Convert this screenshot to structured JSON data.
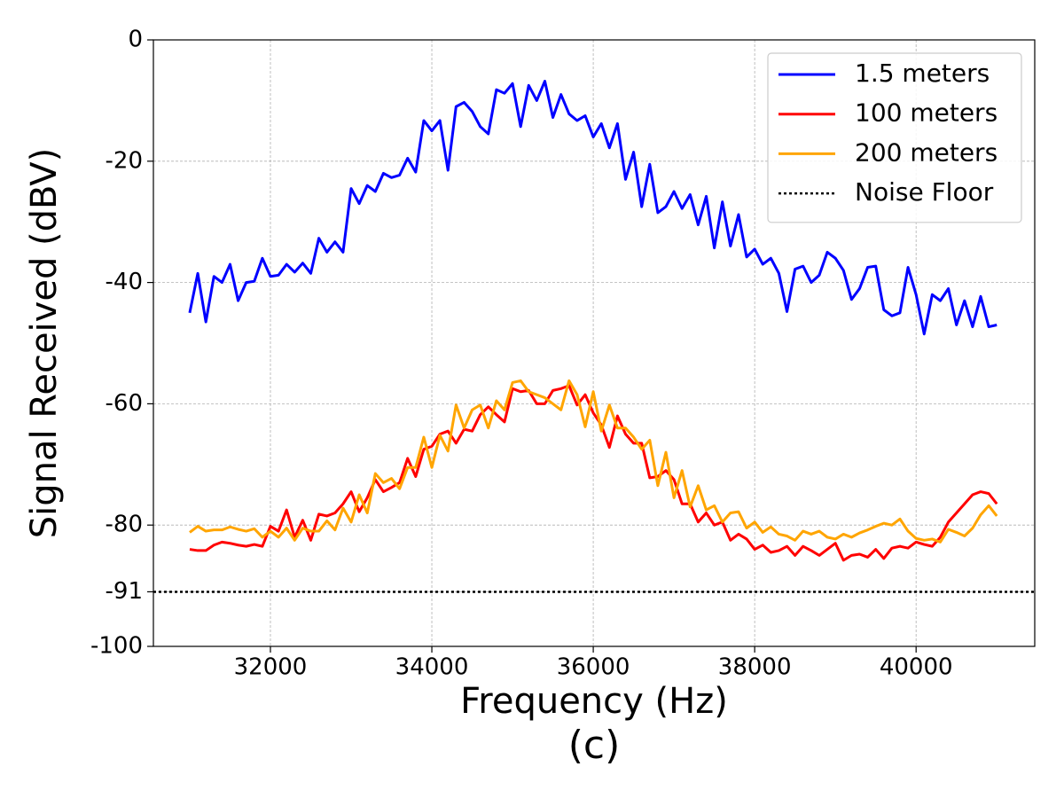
{
  "chart_data": {
    "type": "line",
    "xlabel": "Frequency (Hz)",
    "ylabel": "Signal Received (dBV)",
    "caption": "(c)",
    "x": [
      31000,
      31100,
      31200,
      31300,
      31400,
      31500,
      31600,
      31700,
      31800,
      31900,
      32000,
      32100,
      32200,
      32300,
      32400,
      32500,
      32600,
      32700,
      32800,
      32900,
      33000,
      33100,
      33200,
      33300,
      33400,
      33500,
      33600,
      33700,
      33800,
      33900,
      34000,
      34100,
      34200,
      34300,
      34400,
      34500,
      34600,
      34700,
      34800,
      34900,
      35000,
      35100,
      35200,
      35300,
      35400,
      35500,
      35600,
      35700,
      35800,
      35900,
      36000,
      36100,
      36200,
      36300,
      36400,
      36500,
      36600,
      36700,
      36800,
      36900,
      37000,
      37100,
      37200,
      37300,
      37400,
      37500,
      37600,
      37700,
      37800,
      37900,
      38000,
      38100,
      38200,
      38300,
      38400,
      38500,
      38600,
      38700,
      38800,
      38900,
      39000,
      39100,
      39200,
      39300,
      39400,
      39500,
      39600,
      39700,
      39800,
      39900,
      40000,
      40100,
      40200,
      40300,
      40400,
      40500,
      40600,
      40700,
      40800,
      40900,
      41000
    ],
    "series": [
      {
        "name": "1.5 meters",
        "color": "#0000ff",
        "values": [
          -45,
          -38.5,
          -46.5,
          -39,
          -40,
          -37,
          -43,
          -40,
          -39.8,
          -36,
          -39,
          -38.8,
          -37,
          -38.3,
          -36.8,
          -38.5,
          -32.7,
          -35,
          -33.3,
          -35,
          -24.5,
          -27,
          -24,
          -25,
          -22,
          -22.7,
          -22.3,
          -19.5,
          -21.8,
          -13.3,
          -15,
          -13.3,
          -21.5,
          -11,
          -10.3,
          -11.8,
          -14.3,
          -15.5,
          -8.2,
          -8.8,
          -7.2,
          -14.3,
          -7.5,
          -10,
          -6.8,
          -12.8,
          -9,
          -12.2,
          -13.3,
          -12.5,
          -16,
          -13.8,
          -17.8,
          -13.8,
          -23,
          -18.5,
          -27.5,
          -20.5,
          -28.5,
          -27.5,
          -25,
          -27.8,
          -25.5,
          -30.5,
          -25.8,
          -34.3,
          -26.7,
          -34,
          -28.8,
          -35.8,
          -34.5,
          -37,
          -36,
          -38.5,
          -44.8,
          -37.8,
          -37.3,
          -40,
          -38.8,
          -35,
          -36,
          -38,
          -42.8,
          -41,
          -37.5,
          -37.3,
          -44.5,
          -45.5,
          -45,
          -37.5,
          -42,
          -48.5,
          -42,
          -43,
          -41,
          -47,
          -43,
          -47.3,
          -42.3,
          -47.3,
          -47
        ]
      },
      {
        "name": "100 meters",
        "color": "#ff0000",
        "values": [
          -84,
          -84.2,
          -84.2,
          -83.3,
          -82.8,
          -83,
          -83.3,
          -83.5,
          -83.2,
          -83.5,
          -80.2,
          -81,
          -77.5,
          -82,
          -79.2,
          -82.5,
          -78.2,
          -78.5,
          -78,
          -76.5,
          -74.5,
          -77.8,
          -75.5,
          -72.5,
          -74.5,
          -73.8,
          -73,
          -69,
          -72,
          -67.5,
          -67,
          -65,
          -64.5,
          -66.5,
          -64.2,
          -64.5,
          -61.8,
          -60.5,
          -61.8,
          -63,
          -57.5,
          -58,
          -57.8,
          -60,
          -60,
          -57.8,
          -57.5,
          -57,
          -60.2,
          -58.5,
          -61.5,
          -63.5,
          -67.2,
          -62,
          -65,
          -66.5,
          -66.5,
          -72.2,
          -72,
          -71,
          -72.5,
          -76.5,
          -76.5,
          -79.5,
          -78,
          -80,
          -79.5,
          -82.5,
          -81.5,
          -82.3,
          -84,
          -83.3,
          -84.5,
          -84.2,
          -83.5,
          -85,
          -83.5,
          -84.2,
          -85,
          -84,
          -83,
          -85.8,
          -85,
          -84.8,
          -85.3,
          -84,
          -85.5,
          -83.8,
          -83.5,
          -83.8,
          -82.8,
          -83.2,
          -83.5,
          -82,
          -79.5,
          -78,
          -76.5,
          -75,
          -74.5,
          -74.8,
          -76.5
        ]
      },
      {
        "name": "200 meters",
        "color": "#ffa500",
        "values": [
          -81.2,
          -80.2,
          -81,
          -80.8,
          -80.8,
          -80.3,
          -80.7,
          -81,
          -80.6,
          -82,
          -81,
          -82,
          -80.5,
          -82.5,
          -80.5,
          -81,
          -81,
          -79.3,
          -80.8,
          -77.2,
          -79.5,
          -75,
          -78,
          -71.5,
          -73,
          -72.3,
          -74,
          -70.5,
          -70.5,
          -65.5,
          -70.5,
          -65.2,
          -67.8,
          -60.2,
          -64,
          -61,
          -60.2,
          -64,
          -59.5,
          -61,
          -56.5,
          -56.2,
          -58,
          -58.5,
          -59,
          -60,
          -61,
          -56.2,
          -58.5,
          -63.8,
          -58,
          -64.5,
          -60.2,
          -64,
          -64,
          -65.5,
          -67.5,
          -66,
          -73.5,
          -68,
          -75.5,
          -71,
          -77,
          -73.5,
          -77.5,
          -76.8,
          -79.5,
          -78,
          -77.8,
          -80.5,
          -79.5,
          -81.2,
          -80.3,
          -81.5,
          -81.8,
          -82.5,
          -81,
          -81.5,
          -81,
          -82,
          -82.3,
          -81.5,
          -82,
          -81.3,
          -80.8,
          -80.2,
          -79.7,
          -80,
          -79,
          -81,
          -82.2,
          -82.5,
          -82.3,
          -82.8,
          -80.7,
          -81.2,
          -81.8,
          -80.5,
          -78.3,
          -76.8,
          -78.5
        ]
      }
    ],
    "reference_line": {
      "name": "Noise Floor",
      "y": -91,
      "color": "#000000",
      "style": "dotted"
    },
    "xlim": [
      30550,
      41470
    ],
    "ylim": [
      -100,
      0
    ],
    "xticks": [
      32000,
      34000,
      36000,
      38000,
      40000
    ],
    "yticks": [
      0,
      -20,
      -40,
      -60,
      -80,
      -91,
      -100
    ],
    "grid": true,
    "legend": "upper right"
  }
}
